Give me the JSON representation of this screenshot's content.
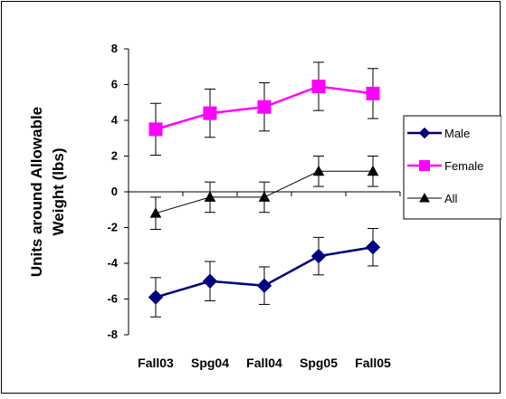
{
  "chart_data": {
    "type": "line",
    "title": "",
    "xlabel": "",
    "ylabel": "Units around Allowable Weight (lbs)",
    "ylabel_lines": [
      "Units around Allowable",
      "Weight (lbs)"
    ],
    "categories": [
      "Fall03",
      "Spg04",
      "Fall04",
      "Spg05",
      "Fall05"
    ],
    "ylim": [
      -8,
      8
    ],
    "yticks": [
      -8,
      -6,
      -4,
      -2,
      0,
      2,
      4,
      6,
      8
    ],
    "grid": false,
    "legend_position": "right",
    "series": [
      {
        "name": "Male",
        "values": [
          -5.9,
          -5.0,
          -5.25,
          -3.6,
          -3.1
        ],
        "error": [
          1.1,
          1.1,
          1.05,
          1.05,
          1.05
        ],
        "color": "#000080",
        "marker": "diamond"
      },
      {
        "name": "Female",
        "values": [
          3.5,
          4.4,
          4.75,
          5.9,
          5.5
        ],
        "error": [
          1.45,
          1.35,
          1.35,
          1.35,
          1.4
        ],
        "color": "#FF00FF",
        "marker": "square"
      },
      {
        "name": "All",
        "values": [
          -1.2,
          -0.3,
          -0.3,
          1.15,
          1.15
        ],
        "error": [
          0.9,
          0.85,
          0.85,
          0.85,
          0.85
        ],
        "color": "#000000",
        "marker": "triangle"
      }
    ]
  }
}
